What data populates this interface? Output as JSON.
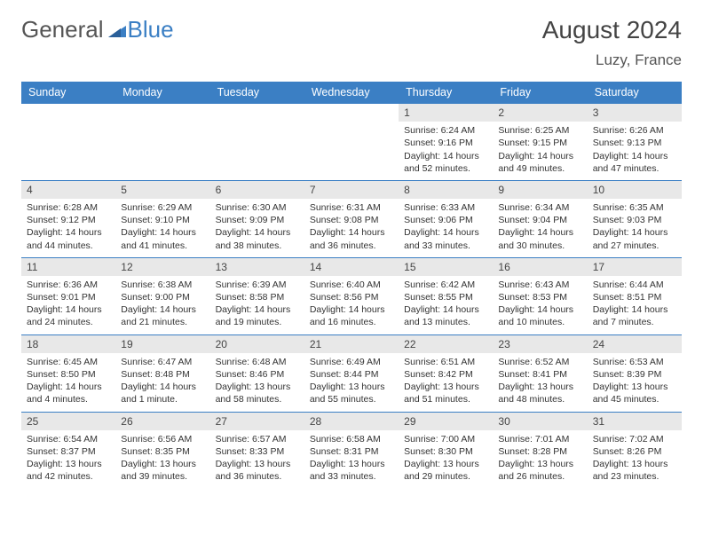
{
  "logo": {
    "text1": "General",
    "text2": "Blue"
  },
  "header": {
    "month_title": "August 2024",
    "location": "Luzy, France"
  },
  "colors": {
    "accent": "#3b7fc4",
    "header_text": "#ffffff",
    "daybar_bg": "#e8e8e8",
    "text": "#333333",
    "title": "#444444"
  },
  "weekdays": [
    "Sunday",
    "Monday",
    "Tuesday",
    "Wednesday",
    "Thursday",
    "Friday",
    "Saturday"
  ],
  "cells": [
    {
      "day": "",
      "sunrise": "",
      "sunset": "",
      "daylight": ""
    },
    {
      "day": "",
      "sunrise": "",
      "sunset": "",
      "daylight": ""
    },
    {
      "day": "",
      "sunrise": "",
      "sunset": "",
      "daylight": ""
    },
    {
      "day": "",
      "sunrise": "",
      "sunset": "",
      "daylight": ""
    },
    {
      "day": "1",
      "sunrise": "Sunrise: 6:24 AM",
      "sunset": "Sunset: 9:16 PM",
      "daylight": "Daylight: 14 hours and 52 minutes."
    },
    {
      "day": "2",
      "sunrise": "Sunrise: 6:25 AM",
      "sunset": "Sunset: 9:15 PM",
      "daylight": "Daylight: 14 hours and 49 minutes."
    },
    {
      "day": "3",
      "sunrise": "Sunrise: 6:26 AM",
      "sunset": "Sunset: 9:13 PM",
      "daylight": "Daylight: 14 hours and 47 minutes."
    },
    {
      "day": "4",
      "sunrise": "Sunrise: 6:28 AM",
      "sunset": "Sunset: 9:12 PM",
      "daylight": "Daylight: 14 hours and 44 minutes."
    },
    {
      "day": "5",
      "sunrise": "Sunrise: 6:29 AM",
      "sunset": "Sunset: 9:10 PM",
      "daylight": "Daylight: 14 hours and 41 minutes."
    },
    {
      "day": "6",
      "sunrise": "Sunrise: 6:30 AM",
      "sunset": "Sunset: 9:09 PM",
      "daylight": "Daylight: 14 hours and 38 minutes."
    },
    {
      "day": "7",
      "sunrise": "Sunrise: 6:31 AM",
      "sunset": "Sunset: 9:08 PM",
      "daylight": "Daylight: 14 hours and 36 minutes."
    },
    {
      "day": "8",
      "sunrise": "Sunrise: 6:33 AM",
      "sunset": "Sunset: 9:06 PM",
      "daylight": "Daylight: 14 hours and 33 minutes."
    },
    {
      "day": "9",
      "sunrise": "Sunrise: 6:34 AM",
      "sunset": "Sunset: 9:04 PM",
      "daylight": "Daylight: 14 hours and 30 minutes."
    },
    {
      "day": "10",
      "sunrise": "Sunrise: 6:35 AM",
      "sunset": "Sunset: 9:03 PM",
      "daylight": "Daylight: 14 hours and 27 minutes."
    },
    {
      "day": "11",
      "sunrise": "Sunrise: 6:36 AM",
      "sunset": "Sunset: 9:01 PM",
      "daylight": "Daylight: 14 hours and 24 minutes."
    },
    {
      "day": "12",
      "sunrise": "Sunrise: 6:38 AM",
      "sunset": "Sunset: 9:00 PM",
      "daylight": "Daylight: 14 hours and 21 minutes."
    },
    {
      "day": "13",
      "sunrise": "Sunrise: 6:39 AM",
      "sunset": "Sunset: 8:58 PM",
      "daylight": "Daylight: 14 hours and 19 minutes."
    },
    {
      "day": "14",
      "sunrise": "Sunrise: 6:40 AM",
      "sunset": "Sunset: 8:56 PM",
      "daylight": "Daylight: 14 hours and 16 minutes."
    },
    {
      "day": "15",
      "sunrise": "Sunrise: 6:42 AM",
      "sunset": "Sunset: 8:55 PM",
      "daylight": "Daylight: 14 hours and 13 minutes."
    },
    {
      "day": "16",
      "sunrise": "Sunrise: 6:43 AM",
      "sunset": "Sunset: 8:53 PM",
      "daylight": "Daylight: 14 hours and 10 minutes."
    },
    {
      "day": "17",
      "sunrise": "Sunrise: 6:44 AM",
      "sunset": "Sunset: 8:51 PM",
      "daylight": "Daylight: 14 hours and 7 minutes."
    },
    {
      "day": "18",
      "sunrise": "Sunrise: 6:45 AM",
      "sunset": "Sunset: 8:50 PM",
      "daylight": "Daylight: 14 hours and 4 minutes."
    },
    {
      "day": "19",
      "sunrise": "Sunrise: 6:47 AM",
      "sunset": "Sunset: 8:48 PM",
      "daylight": "Daylight: 14 hours and 1 minute."
    },
    {
      "day": "20",
      "sunrise": "Sunrise: 6:48 AM",
      "sunset": "Sunset: 8:46 PM",
      "daylight": "Daylight: 13 hours and 58 minutes."
    },
    {
      "day": "21",
      "sunrise": "Sunrise: 6:49 AM",
      "sunset": "Sunset: 8:44 PM",
      "daylight": "Daylight: 13 hours and 55 minutes."
    },
    {
      "day": "22",
      "sunrise": "Sunrise: 6:51 AM",
      "sunset": "Sunset: 8:42 PM",
      "daylight": "Daylight: 13 hours and 51 minutes."
    },
    {
      "day": "23",
      "sunrise": "Sunrise: 6:52 AM",
      "sunset": "Sunset: 8:41 PM",
      "daylight": "Daylight: 13 hours and 48 minutes."
    },
    {
      "day": "24",
      "sunrise": "Sunrise: 6:53 AM",
      "sunset": "Sunset: 8:39 PM",
      "daylight": "Daylight: 13 hours and 45 minutes."
    },
    {
      "day": "25",
      "sunrise": "Sunrise: 6:54 AM",
      "sunset": "Sunset: 8:37 PM",
      "daylight": "Daylight: 13 hours and 42 minutes."
    },
    {
      "day": "26",
      "sunrise": "Sunrise: 6:56 AM",
      "sunset": "Sunset: 8:35 PM",
      "daylight": "Daylight: 13 hours and 39 minutes."
    },
    {
      "day": "27",
      "sunrise": "Sunrise: 6:57 AM",
      "sunset": "Sunset: 8:33 PM",
      "daylight": "Daylight: 13 hours and 36 minutes."
    },
    {
      "day": "28",
      "sunrise": "Sunrise: 6:58 AM",
      "sunset": "Sunset: 8:31 PM",
      "daylight": "Daylight: 13 hours and 33 minutes."
    },
    {
      "day": "29",
      "sunrise": "Sunrise: 7:00 AM",
      "sunset": "Sunset: 8:30 PM",
      "daylight": "Daylight: 13 hours and 29 minutes."
    },
    {
      "day": "30",
      "sunrise": "Sunrise: 7:01 AM",
      "sunset": "Sunset: 8:28 PM",
      "daylight": "Daylight: 13 hours and 26 minutes."
    },
    {
      "day": "31",
      "sunrise": "Sunrise: 7:02 AM",
      "sunset": "Sunset: 8:26 PM",
      "daylight": "Daylight: 13 hours and 23 minutes."
    }
  ]
}
